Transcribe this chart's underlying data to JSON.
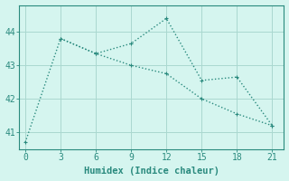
{
  "xlabel": "Humidex (Indice chaleur)",
  "background_color": "#d5f5ef",
  "line1_x": [
    0,
    3,
    6,
    9,
    12,
    15,
    18,
    21
  ],
  "line1_y": [
    40.7,
    43.8,
    43.35,
    43.0,
    42.75,
    42.0,
    41.55,
    41.2
  ],
  "line2_x": [
    3,
    6,
    9,
    12,
    15,
    18,
    21
  ],
  "line2_y": [
    43.8,
    43.35,
    43.65,
    44.4,
    42.55,
    42.65,
    41.2
  ],
  "line_color": "#2a8a7e",
  "xlim": [
    -0.5,
    22
  ],
  "ylim": [
    40.5,
    44.8
  ],
  "xticks": [
    0,
    3,
    6,
    9,
    12,
    15,
    18,
    21
  ],
  "yticks": [
    41,
    42,
    43,
    44
  ],
  "grid_color": "#aad8d0",
  "marker": "D",
  "marker_size": 2.5,
  "linewidth": 1.0
}
